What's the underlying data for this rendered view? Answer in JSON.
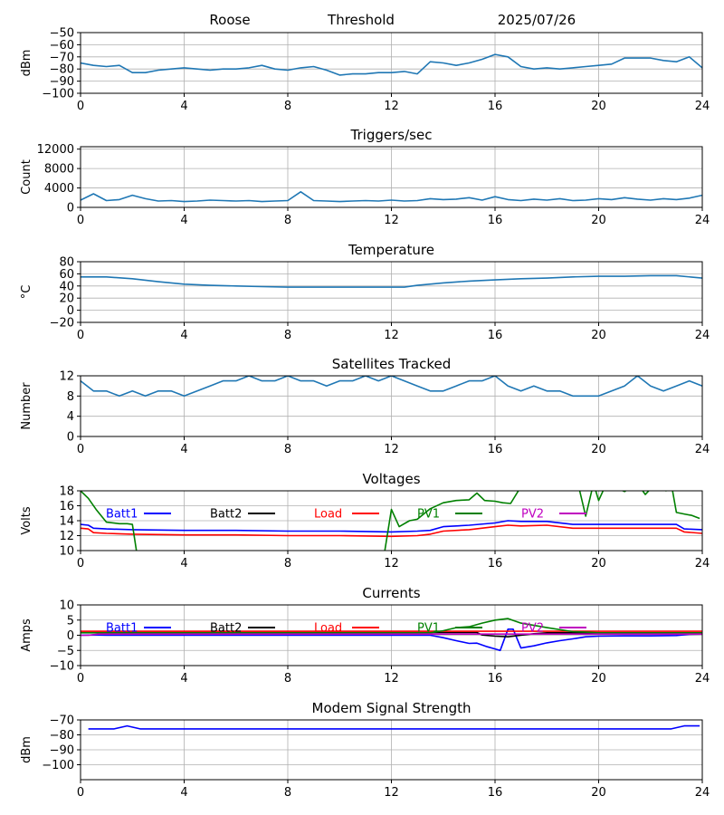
{
  "header": {
    "site": "Roose",
    "mode": "Threshold",
    "date": "2025/07/26"
  },
  "colors": {
    "default_line": "#1f77b4",
    "batt1": "#0000ff",
    "batt2": "#000000",
    "load": "#ff0000",
    "pv1": "#008000",
    "pv2": "#bf00bf",
    "grid": "#b0b0b0"
  },
  "chart_data": [
    {
      "type": "line",
      "title": "",
      "ylabel": "dBm",
      "xlim": [
        0,
        24
      ],
      "ylim": [
        -100,
        -50
      ],
      "xticks": [
        0,
        4,
        8,
        12,
        16,
        20,
        24
      ],
      "yticks": [
        -100,
        -90,
        -80,
        -70,
        -60,
        -50
      ],
      "grid": true,
      "series": [
        {
          "color": "#1f77b4",
          "x": [
            0,
            0.5,
            1,
            1.5,
            2,
            2.5,
            3,
            3.5,
            4,
            4.5,
            5,
            5.5,
            6,
            6.5,
            7,
            7.5,
            8,
            8.5,
            9,
            9.5,
            10,
            10.5,
            11,
            11.5,
            12,
            12.5,
            13,
            13.5,
            14,
            14.5,
            15,
            15.5,
            16,
            16.5,
            17,
            17.5,
            18,
            18.5,
            19,
            19.5,
            20,
            20.5,
            21,
            21.5,
            22,
            22.5,
            23,
            23.5,
            24
          ],
          "values": [
            -75,
            -77,
            -78,
            -77,
            -83,
            -83,
            -81,
            -80,
            -79,
            -80,
            -81,
            -80,
            -80,
            -79,
            -77,
            -80,
            -81,
            -79,
            -78,
            -81,
            -85,
            -84,
            -84,
            -83,
            -83,
            -82,
            -84,
            -74,
            -75,
            -77,
            -75,
            -72,
            -68,
            -70,
            -78,
            -80,
            -79,
            -80,
            -79,
            -78,
            -77,
            -76,
            -71,
            -71,
            -71,
            -73,
            -74,
            -70,
            -79
          ]
        }
      ]
    },
    {
      "type": "line",
      "title": "Triggers/sec",
      "ylabel": "Count",
      "xlim": [
        0,
        24
      ],
      "ylim": [
        0,
        12500
      ],
      "xticks": [
        0,
        4,
        8,
        12,
        16,
        20,
        24
      ],
      "yticks": [
        0,
        4000,
        8000,
        12000
      ],
      "grid": true,
      "series": [
        {
          "color": "#1f77b4",
          "x": [
            0,
            0.5,
            1,
            1.5,
            2,
            2.5,
            3,
            3.5,
            4,
            4.5,
            5,
            5.5,
            6,
            6.5,
            7,
            7.5,
            8,
            8.5,
            9,
            9.5,
            10,
            10.5,
            11,
            11.5,
            12,
            12.5,
            13,
            13.5,
            14,
            14.5,
            15,
            15.5,
            16,
            16.5,
            17,
            17.5,
            18,
            18.5,
            19,
            19.5,
            20,
            20.5,
            21,
            21.5,
            22,
            22.5,
            23,
            23.5,
            24
          ],
          "values": [
            1500,
            2800,
            1400,
            1600,
            2500,
            1800,
            1300,
            1400,
            1200,
            1300,
            1500,
            1400,
            1300,
            1400,
            1200,
            1300,
            1400,
            3200,
            1400,
            1300,
            1200,
            1300,
            1400,
            1300,
            1500,
            1300,
            1400,
            1800,
            1600,
            1700,
            2000,
            1500,
            2200,
            1600,
            1400,
            1700,
            1500,
            1800,
            1400,
            1500,
            1800,
            1600,
            2000,
            1700,
            1500,
            1800,
            1600,
            1900,
            2500
          ]
        }
      ]
    },
    {
      "type": "line",
      "title": "Temperature",
      "ylabel": "°C",
      "xlim": [
        0,
        24
      ],
      "ylim": [
        -20,
        80
      ],
      "xticks": [
        0,
        4,
        8,
        12,
        16,
        20,
        24
      ],
      "yticks": [
        -20,
        0,
        20,
        40,
        60,
        80
      ],
      "grid": true,
      "series": [
        {
          "color": "#1f77b4",
          "x": [
            0,
            1,
            2,
            3,
            4,
            5,
            6,
            7,
            8,
            9,
            10,
            11,
            12,
            12.5,
            13,
            14,
            15,
            16,
            17,
            18,
            19,
            20,
            21,
            22,
            23,
            24
          ],
          "values": [
            55,
            55,
            52,
            47,
            43,
            41,
            40,
            39,
            38,
            38,
            38,
            38,
            38,
            38,
            41,
            45,
            48,
            50,
            52,
            53,
            55,
            56,
            56,
            57,
            57,
            53
          ]
        }
      ]
    },
    {
      "type": "line",
      "title": "Satellites Tracked",
      "ylabel": "Number",
      "xlim": [
        0,
        24
      ],
      "ylim": [
        0,
        12
      ],
      "xticks": [
        0,
        4,
        8,
        12,
        16,
        20,
        24
      ],
      "yticks": [
        0,
        4,
        8,
        12
      ],
      "grid": true,
      "series": [
        {
          "color": "#1f77b4",
          "x": [
            0,
            0.5,
            1,
            1.5,
            2,
            2.5,
            3,
            3.5,
            4,
            4.5,
            5,
            5.5,
            6,
            6.5,
            7,
            7.5,
            8,
            8.5,
            9,
            9.5,
            10,
            10.5,
            11,
            11.5,
            12,
            12.5,
            13,
            13.5,
            14,
            14.5,
            15,
            15.5,
            16,
            16.5,
            17,
            17.5,
            18,
            18.5,
            19,
            19.5,
            20,
            20.5,
            21,
            21.5,
            22,
            22.5,
            23,
            23.5,
            24
          ],
          "values": [
            11,
            9,
            9,
            8,
            9,
            8,
            9,
            9,
            8,
            9,
            10,
            11,
            11,
            12,
            11,
            11,
            12,
            11,
            11,
            10,
            11,
            11,
            12,
            11,
            12,
            11,
            10,
            9,
            9,
            10,
            11,
            11,
            12,
            10,
            9,
            10,
            9,
            9,
            8,
            8,
            8,
            9,
            10,
            12,
            10,
            9,
            10,
            11,
            10
          ]
        }
      ]
    },
    {
      "type": "line",
      "title": "Voltages",
      "ylabel": "Volts",
      "xlim": [
        0,
        24
      ],
      "ylim": [
        10,
        18
      ],
      "xticks": [
        0,
        4,
        8,
        12,
        16,
        20,
        24
      ],
      "yticks": [
        10,
        12,
        14,
        16,
        18
      ],
      "grid": true,
      "legend": "top-inline",
      "series": [
        {
          "name": "Batt1",
          "color": "#0000ff",
          "x": [
            0,
            0.3,
            0.5,
            1,
            2,
            4,
            6,
            8,
            10,
            12,
            13,
            13.5,
            14,
            15,
            16,
            16.5,
            17,
            18,
            19,
            20,
            21,
            22,
            23,
            23.3,
            24
          ],
          "values": [
            13.5,
            13.4,
            13.0,
            12.9,
            12.8,
            12.7,
            12.7,
            12.6,
            12.6,
            12.5,
            12.6,
            12.7,
            13.2,
            13.4,
            13.7,
            14.0,
            13.9,
            13.9,
            13.5,
            13.5,
            13.5,
            13.5,
            13.5,
            12.9,
            12.8
          ]
        },
        {
          "name": "Batt2",
          "color": "#000000",
          "x": [],
          "values": []
        },
        {
          "name": "Load",
          "color": "#ff0000",
          "x": [
            0,
            0.3,
            0.5,
            1,
            2,
            4,
            6,
            8,
            10,
            12,
            13,
            13.5,
            14,
            15,
            16,
            16.5,
            17,
            18,
            19,
            20,
            21,
            22,
            23,
            23.3,
            24
          ],
          "values": [
            13.0,
            12.9,
            12.4,
            12.3,
            12.2,
            12.1,
            12.1,
            12.0,
            12.0,
            11.9,
            12.0,
            12.2,
            12.6,
            12.8,
            13.2,
            13.4,
            13.3,
            13.4,
            13.0,
            13.0,
            13.0,
            13.0,
            13.0,
            12.5,
            12.3
          ]
        },
        {
          "name": "PV1",
          "color": "#008000",
          "x": [
            0,
            0.3,
            0.6,
            1,
            1.5,
            1.8,
            2.0,
            2.2,
            11.7,
            12.0,
            12.3,
            12.7,
            13.0,
            13.5,
            14,
            14.5,
            15,
            15.3,
            15.6,
            16,
            16.3,
            16.6,
            16.9,
            17.2,
            19.2,
            19.5,
            19.8,
            20.0,
            20.3,
            21.0,
            21.5,
            21.8,
            22.2,
            22.6,
            22.8,
            23.0,
            23.3,
            23.6,
            23.9
          ],
          "values": [
            18.0,
            17.0,
            15.5,
            13.8,
            13.6,
            13.6,
            13.5,
            9.0,
            9.0,
            15.5,
            13.2,
            14.0,
            14.2,
            15.6,
            16.4,
            16.7,
            16.8,
            17.7,
            16.7,
            16.6,
            16.4,
            16.3,
            18.0,
            19.0,
            19.0,
            14.6,
            19.0,
            16.7,
            19.0,
            17.9,
            19.0,
            17.5,
            19.0,
            18.0,
            19.0,
            15.1,
            14.9,
            14.7,
            14.3
          ]
        },
        {
          "name": "PV2",
          "color": "#bf00bf",
          "x": [],
          "values": []
        }
      ]
    },
    {
      "type": "line",
      "title": "Currents",
      "ylabel": "Amps",
      "xlim": [
        0,
        24
      ],
      "ylim": [
        -10,
        10
      ],
      "xticks": [
        0,
        4,
        8,
        12,
        16,
        20,
        24
      ],
      "yticks": [
        -10,
        -5,
        0,
        5,
        10
      ],
      "grid": true,
      "legend": "top-inline",
      "series": [
        {
          "name": "Batt1",
          "color": "#0000ff",
          "x": [
            0,
            0.5,
            1,
            4,
            8,
            12,
            13.5,
            14,
            14.5,
            15,
            15.3,
            15.7,
            16.0,
            16.2,
            16.5,
            16.7,
            17.0,
            17.5,
            18.0,
            18.5,
            19,
            19.5,
            20,
            21,
            22,
            23,
            23.5,
            24
          ],
          "values": [
            0.0,
            0.1,
            0.0,
            0.0,
            0.0,
            0.0,
            0.0,
            -0.8,
            -1.8,
            -2.7,
            -2.6,
            -3.8,
            -4.5,
            -5.0,
            2.0,
            2.0,
            -4.2,
            -3.5,
            -2.5,
            -1.8,
            -1.2,
            -0.5,
            -0.3,
            -0.2,
            -0.2,
            -0.1,
            0.3,
            0.4
          ]
        },
        {
          "name": "Batt2",
          "color": "#000000",
          "x": [
            0,
            4,
            8,
            12,
            15.3,
            15.5,
            16,
            16.5,
            17,
            17.5,
            18,
            20,
            24
          ],
          "values": [
            0.9,
            0.9,
            0.9,
            0.9,
            0.9,
            0.1,
            -0.3,
            -0.5,
            0.0,
            0.5,
            0.8,
            0.8,
            0.8
          ]
        },
        {
          "name": "Load",
          "color": "#ff0000",
          "x": [
            0,
            0.5,
            24
          ],
          "values": [
            1.3,
            1.3,
            1.3
          ]
        },
        {
          "name": "PV1",
          "color": "#008000",
          "x": [
            0,
            1,
            2,
            4,
            8,
            12,
            13.5,
            14,
            14.5,
            15,
            15.5,
            16,
            16.5,
            17,
            18,
            19,
            19.5,
            20,
            21,
            22,
            23,
            24
          ],
          "values": [
            0.8,
            0.8,
            0.8,
            0.8,
            0.8,
            0.8,
            0.8,
            1.5,
            2.5,
            2.8,
            4.0,
            5.0,
            5.5,
            4.0,
            2.5,
            1.2,
            1.0,
            0.8,
            0.8,
            0.8,
            0.8,
            0.8
          ]
        },
        {
          "name": "PV2",
          "color": "#bf00bf",
          "x": [
            0,
            0.3,
            0.7,
            24
          ],
          "values": [
            0.0,
            0.0,
            0.4,
            0.4
          ]
        }
      ]
    },
    {
      "type": "line",
      "title": "Modem Signal Strength",
      "ylabel": "dBm",
      "xlim": [
        0,
        24
      ],
      "ylim": [
        -110,
        -70
      ],
      "xticks": [
        0,
        4,
        8,
        12,
        16,
        20,
        24
      ],
      "yticks": [
        -100,
        -90,
        -80,
        -70
      ],
      "grid": true,
      "series": [
        {
          "color": "#0000ff",
          "x": [
            0.3,
            1.3,
            1.8,
            2.3,
            22.8,
            23.3,
            23.9
          ],
          "values": [
            -76,
            -76,
            -74,
            -76,
            -76,
            -74,
            -74
          ]
        }
      ]
    }
  ]
}
